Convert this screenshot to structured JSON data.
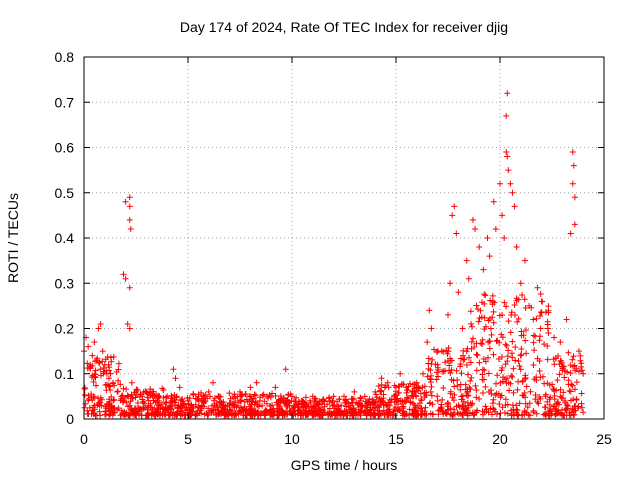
{
  "chart_data": {
    "type": "scatter",
    "title": "Day 174 of 2024, Rate Of TEC Index for receiver djig",
    "xlabel": "GPS time / hours",
    "ylabel": "ROTI / TECUs",
    "xlim": [
      0,
      25
    ],
    "ylim": [
      0,
      0.8
    ],
    "x_ticks": [
      0,
      5,
      10,
      15,
      20,
      25
    ],
    "x_tick_labels": [
      "0",
      "5",
      "10",
      "15",
      "20",
      "25"
    ],
    "y_ticks": [
      0,
      0.1,
      0.2,
      0.3,
      0.4,
      0.5,
      0.6,
      0.7,
      0.8
    ],
    "y_tick_labels": [
      "0",
      "0.1",
      "0.2",
      "0.3",
      "0.4",
      "0.5",
      "0.6",
      "0.7",
      "0.8"
    ],
    "grid": true,
    "marker": "+",
    "marker_color": "#ff0000",
    "series": [
      {
        "name": "ROTI",
        "points": [
          [
            0.0,
            0.15
          ],
          [
            0.1,
            0.18
          ],
          [
            0.2,
            0.16
          ],
          [
            0.3,
            0.12
          ],
          [
            0.4,
            0.14
          ],
          [
            0.5,
            0.17
          ],
          [
            0.6,
            0.13
          ],
          [
            0.7,
            0.2
          ],
          [
            0.8,
            0.21
          ],
          [
            0.9,
            0.15
          ],
          [
            1.0,
            0.12
          ],
          [
            1.1,
            0.1
          ],
          [
            1.2,
            0.09
          ],
          [
            1.4,
            0.08
          ],
          [
            1.6,
            0.06
          ],
          [
            1.8,
            0.05
          ],
          [
            1.9,
            0.32
          ],
          [
            2.0,
            0.31
          ],
          [
            2.0,
            0.48
          ],
          [
            2.1,
            0.21
          ],
          [
            2.2,
            0.2
          ],
          [
            2.2,
            0.49
          ],
          [
            2.2,
            0.47
          ],
          [
            2.2,
            0.44
          ],
          [
            2.25,
            0.42
          ],
          [
            2.2,
            0.29
          ],
          [
            2.3,
            0.08
          ],
          [
            2.5,
            0.06
          ],
          [
            2.8,
            0.05
          ],
          [
            3.0,
            0.06
          ],
          [
            3.3,
            0.05
          ],
          [
            3.6,
            0.04
          ],
          [
            4.0,
            0.05
          ],
          [
            4.3,
            0.11
          ],
          [
            4.4,
            0.09
          ],
          [
            4.6,
            0.07
          ],
          [
            5.0,
            0.04
          ],
          [
            5.5,
            0.05
          ],
          [
            6.0,
            0.06
          ],
          [
            6.2,
            0.08
          ],
          [
            6.5,
            0.05
          ],
          [
            7.0,
            0.03
          ],
          [
            7.5,
            0.06
          ],
          [
            8.0,
            0.07
          ],
          [
            8.3,
            0.08
          ],
          [
            8.8,
            0.05
          ],
          [
            9.2,
            0.07
          ],
          [
            9.7,
            0.11
          ],
          [
            10.0,
            0.05
          ],
          [
            10.5,
            0.04
          ],
          [
            11.0,
            0.05
          ],
          [
            11.5,
            0.04
          ],
          [
            12.0,
            0.05
          ],
          [
            12.5,
            0.05
          ],
          [
            13.0,
            0.06
          ],
          [
            13.5,
            0.05
          ],
          [
            14.0,
            0.06
          ],
          [
            14.3,
            0.09
          ],
          [
            14.6,
            0.08
          ],
          [
            15.0,
            0.07
          ],
          [
            15.2,
            0.1
          ],
          [
            15.5,
            0.07
          ],
          [
            15.8,
            0.06
          ],
          [
            16.0,
            0.08
          ],
          [
            16.3,
            0.1
          ],
          [
            16.5,
            0.17
          ],
          [
            16.6,
            0.24
          ],
          [
            16.7,
            0.2
          ],
          [
            17.0,
            0.12
          ],
          [
            17.2,
            0.15
          ],
          [
            17.5,
            0.23
          ],
          [
            17.6,
            0.3
          ],
          [
            17.7,
            0.45
          ],
          [
            17.8,
            0.47
          ],
          [
            17.9,
            0.41
          ],
          [
            18.0,
            0.28
          ],
          [
            18.2,
            0.2
          ],
          [
            18.4,
            0.35
          ],
          [
            18.5,
            0.31
          ],
          [
            18.7,
            0.44
          ],
          [
            18.8,
            0.42
          ],
          [
            19.0,
            0.38
          ],
          [
            19.2,
            0.33
          ],
          [
            19.4,
            0.4
          ],
          [
            19.5,
            0.36
          ],
          [
            19.7,
            0.48
          ],
          [
            19.8,
            0.42
          ],
          [
            20.0,
            0.52
          ],
          [
            20.1,
            0.45
          ],
          [
            20.2,
            0.4
          ],
          [
            20.3,
            0.59
          ],
          [
            20.35,
            0.58
          ],
          [
            20.3,
            0.67
          ],
          [
            20.35,
            0.72
          ],
          [
            20.4,
            0.55
          ],
          [
            20.5,
            0.52
          ],
          [
            20.6,
            0.5
          ],
          [
            20.7,
            0.47
          ],
          [
            20.8,
            0.38
          ],
          [
            21.0,
            0.3
          ],
          [
            21.2,
            0.35
          ],
          [
            21.4,
            0.25
          ],
          [
            21.6,
            0.22
          ],
          [
            21.8,
            0.29
          ],
          [
            22.0,
            0.26
          ],
          [
            22.3,
            0.2
          ],
          [
            22.6,
            0.18
          ],
          [
            22.9,
            0.17
          ],
          [
            23.2,
            0.22
          ],
          [
            23.4,
            0.41
          ],
          [
            23.5,
            0.59
          ],
          [
            23.55,
            0.56
          ],
          [
            23.5,
            0.52
          ],
          [
            23.6,
            0.49
          ],
          [
            23.6,
            0.43
          ],
          [
            23.8,
            0.15
          ],
          [
            24.0,
            0.1
          ]
        ]
      }
    ],
    "background_clusters": [
      {
        "x_range": [
          0.0,
          1.8
        ],
        "y_max": 0.13
      },
      {
        "x_range": [
          1.8,
          4.0
        ],
        "y_max": 0.06
      },
      {
        "x_range": [
          4.0,
          10.0
        ],
        "y_max": 0.05
      },
      {
        "x_range": [
          10.0,
          14.0
        ],
        "y_max": 0.04
      },
      {
        "x_range": [
          14.0,
          16.5
        ],
        "y_max": 0.07
      },
      {
        "x_range": [
          16.5,
          18.5
        ],
        "y_max": 0.15
      },
      {
        "x_range": [
          18.5,
          22.5
        ],
        "y_max": 0.27
      },
      {
        "x_range": [
          22.5,
          24.0
        ],
        "y_max": 0.14
      }
    ]
  }
}
